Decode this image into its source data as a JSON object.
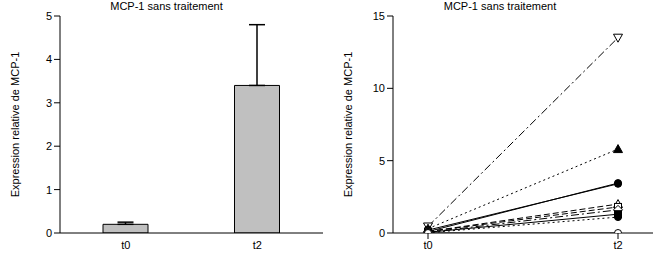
{
  "chart_data": [
    {
      "type": "bar",
      "title": "MCP-1 sans traitement",
      "y_label": "Expression relative de MCP-1",
      "categories": [
        "t0",
        "t2"
      ],
      "values": [
        0.2,
        3.4
      ],
      "error": [
        0.05,
        1.4
      ],
      "color": "#c0c0c0",
      "ylim": [
        0,
        5
      ],
      "yticks": [
        0,
        1,
        2,
        3,
        4,
        5
      ],
      "grid": false
    },
    {
      "type": "line",
      "title": "MCP-1 sans traitement",
      "y_label": "Expression relative de MCP-1",
      "categories": [
        "t0",
        "t2"
      ],
      "ylim": [
        0,
        15
      ],
      "yticks": [
        0,
        5,
        10,
        15
      ],
      "grid": false,
      "series": [
        {
          "color": "#000000",
          "marker": "triangle-down-open",
          "line_style": "dashdot",
          "values": [
            0.45,
            13.5
          ]
        },
        {
          "color": "#000000",
          "marker": "triangle",
          "line_style": "dotted",
          "values": [
            0.3,
            5.8
          ]
        },
        {
          "color": "#000000",
          "marker": "circle",
          "line_style": "solid",
          "values": [
            0.2,
            3.4
          ]
        },
        {
          "color": "#000000",
          "marker": "circle",
          "line_style": "solid",
          "values": [
            0.1,
            3.45
          ]
        },
        {
          "color": "#000000",
          "marker": "triangle-open",
          "line_style": "dashed",
          "values": [
            0.1,
            2.0
          ]
        },
        {
          "color": "#000000",
          "marker": "square-open",
          "line_style": "dashed",
          "values": [
            0.1,
            1.8
          ]
        },
        {
          "color": "#000000",
          "marker": "diamond-open",
          "line_style": "dashdot",
          "values": [
            0.05,
            1.6
          ]
        },
        {
          "color": "#000000",
          "marker": "square",
          "line_style": "solid",
          "values": [
            0.05,
            1.3
          ]
        },
        {
          "color": "#000000",
          "marker": "circle",
          "line_style": "dotted",
          "values": [
            0.02,
            1.1
          ]
        },
        {
          "color": "#000000",
          "marker": "circle-open",
          "line_style": "solid",
          "values": [
            0.0,
            0.0
          ]
        }
      ]
    }
  ]
}
